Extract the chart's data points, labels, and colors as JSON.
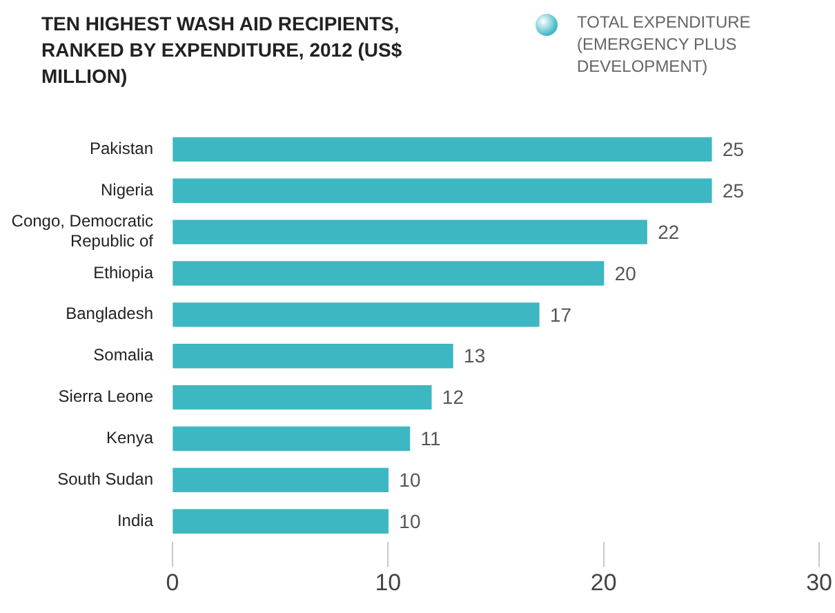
{
  "chart_data": {
    "type": "bar",
    "orientation": "horizontal",
    "title": "TEN HIGHEST WASH AID RECIPIENTS, RANKED BY EXPENDITURE, 2012 (US$ MILLION)",
    "categories": [
      "Pakistan",
      "Nigeria",
      "Congo, Democratic Republic of",
      "Ethiopia",
      "Bangladesh",
      "Somalia",
      "Sierra Leone",
      "Kenya",
      "South Sudan",
      "India"
    ],
    "series": [
      {
        "name": "TOTAL EXPENDITURE (EMERGENCY PLUS DEVELOPMENT)",
        "color": "#3db7c2",
        "values": [
          25,
          25,
          22,
          20,
          17,
          13,
          12,
          11,
          10,
          10
        ]
      }
    ],
    "xlim": [
      0,
      30
    ],
    "xticks": [
      0,
      10,
      20,
      30
    ],
    "grid": false,
    "legend": "top right",
    "data_labels": true
  }
}
